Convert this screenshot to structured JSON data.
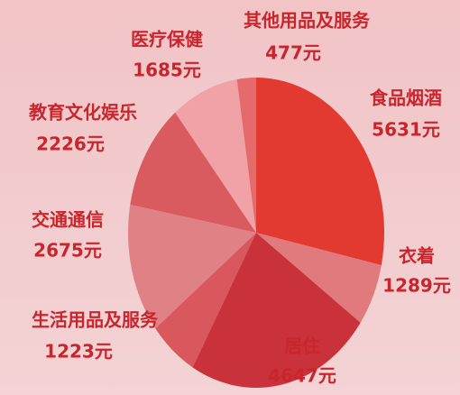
{
  "chart_data": {
    "type": "pie",
    "categories": [
      "食品烟酒",
      "衣着",
      "居住",
      "生活用品及服务",
      "交通通信",
      "教育文化娱乐",
      "医疗保健",
      "其他用品及服务"
    ],
    "values": [
      5631,
      1289,
      4647,
      1223,
      2675,
      2226,
      1685,
      477
    ],
    "value_labels": [
      "5631元",
      "1289元",
      "4647元",
      "1223元",
      "2675元",
      "2226元",
      "1685元",
      "477元"
    ],
    "colors": [
      "#e23a30",
      "#e07a7c",
      "#c9323a",
      "#d9585d",
      "#e08186",
      "#d95b60",
      "#f0a2a6",
      "#e46a6b"
    ]
  }
}
